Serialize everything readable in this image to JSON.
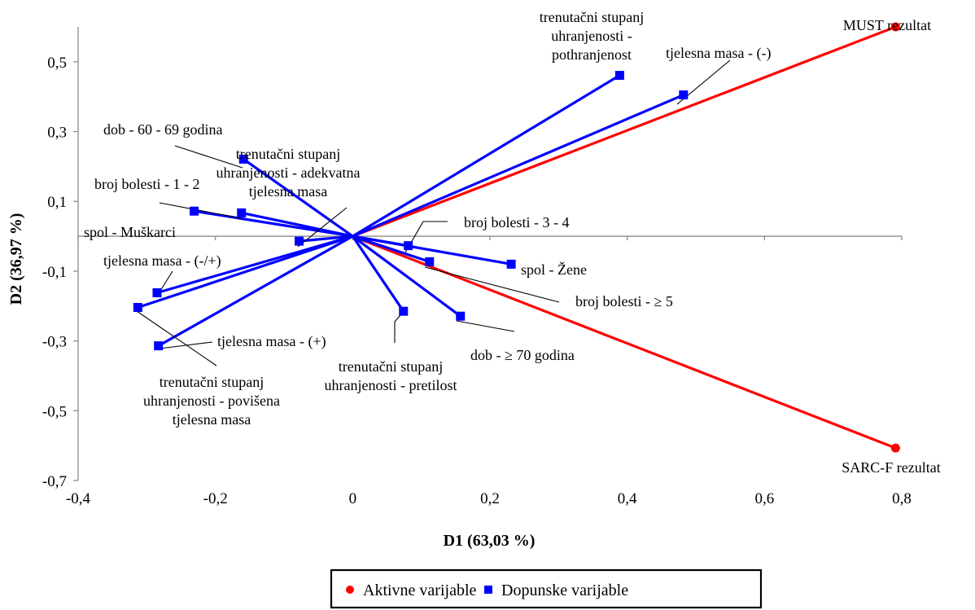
{
  "chart_data": {
    "type": "scatter",
    "title": "",
    "xlabel": "D1 (63,03 %)",
    "ylabel": "D2 (36,97 %)",
    "xlim": [
      -0.4,
      0.8
    ],
    "ylim": [
      -0.7,
      0.6
    ],
    "x_ticks": [
      "-0,4",
      "-0,2",
      "0",
      "0,2",
      "0,4",
      "0,6",
      "0,8"
    ],
    "y_ticks": [
      "0,5",
      "0,3",
      "0,1",
      "-0,1",
      "-0,3",
      "-0,5",
      "-0,7"
    ],
    "grid": false,
    "legend_position": "bottom",
    "series": [
      {
        "name": "Aktivne varijable",
        "color": "#ff0000",
        "marker": "circle",
        "points": [
          {
            "x": 0.791,
            "y": 0.6,
            "label": [
              "MUST rezultat"
            ]
          },
          {
            "x": 0.791,
            "y": -0.607,
            "label": [
              "SARC-F rezultat"
            ]
          }
        ]
      },
      {
        "name": "Dopunske varijable",
        "color": "#0000ff",
        "marker": "square",
        "points": [
          {
            "x": 0.389,
            "y": 0.461,
            "label": [
              "trenutačni stupanj",
              "uhranjenosti -",
              "pothranjenost"
            ]
          },
          {
            "x": 0.482,
            "y": 0.405,
            "label": [
              "tjelesna masa - (-)"
            ]
          },
          {
            "x": -0.159,
            "y": 0.221,
            "label": [
              "dob - 60 - 69 godina"
            ]
          },
          {
            "x": -0.078,
            "y": -0.014,
            "label": [
              "trenutačni stupanj",
              "uhranjenosti - adekvatna",
              "tjelesna masa"
            ]
          },
          {
            "x": -0.162,
            "y": 0.067,
            "label": [
              "broj bolesti - 1 - 2"
            ]
          },
          {
            "x": -0.231,
            "y": 0.072,
            "label": [
              "spol - Muškarci"
            ]
          },
          {
            "x": 0.081,
            "y": -0.027,
            "label": [
              "broj bolesti - 3 - 4"
            ]
          },
          {
            "x": 0.231,
            "y": -0.08,
            "label": [
              "spol - Žene"
            ]
          },
          {
            "x": 0.112,
            "y": -0.073,
            "label": [
              "broj bolesti - ≥ 5"
            ]
          },
          {
            "x": 0.157,
            "y": -0.229,
            "label": [
              "dob - ≥ 70 godina"
            ]
          },
          {
            "x": 0.074,
            "y": -0.215,
            "label": [
              "trenutačni stupanj",
              "uhranjenosti - pretilost"
            ]
          },
          {
            "x": -0.285,
            "y": -0.162,
            "label": [
              "tjelesna masa - (-/+)"
            ]
          },
          {
            "x": -0.313,
            "y": -0.204,
            "label": [
              "trenutačni stupanj",
              "uhranjenosti - povišena",
              "tjelesna masa"
            ]
          },
          {
            "x": -0.283,
            "y": -0.314,
            "label": [
              "tjelesna masa - (+)"
            ]
          }
        ]
      }
    ]
  }
}
